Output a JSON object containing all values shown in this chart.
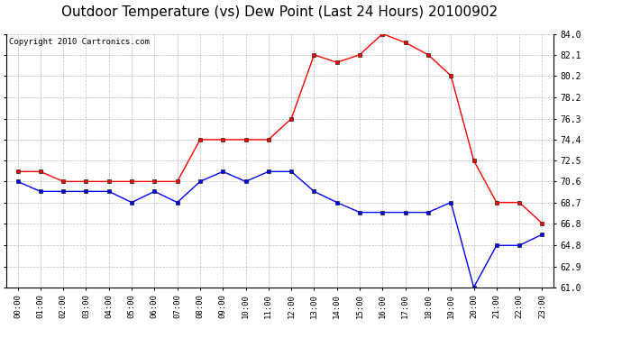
{
  "title": "Outdoor Temperature (vs) Dew Point (Last 24 Hours) 20100902",
  "copyright": "Copyright 2010 Cartronics.com",
  "x_labels": [
    "00:00",
    "01:00",
    "02:00",
    "03:00",
    "04:00",
    "05:00",
    "06:00",
    "07:00",
    "08:00",
    "09:00",
    "10:00",
    "11:00",
    "12:00",
    "13:00",
    "14:00",
    "15:00",
    "16:00",
    "17:00",
    "18:00",
    "19:00",
    "20:00",
    "21:00",
    "22:00",
    "23:00"
  ],
  "temp_red": [
    71.5,
    71.5,
    70.6,
    70.6,
    70.6,
    70.6,
    70.6,
    70.6,
    74.4,
    74.4,
    74.4,
    74.4,
    76.3,
    82.1,
    81.4,
    82.1,
    84.0,
    83.2,
    82.1,
    80.2,
    72.5,
    68.7,
    68.7,
    66.8
  ],
  "temp_blue": [
    70.6,
    69.7,
    69.7,
    69.7,
    69.7,
    68.7,
    69.7,
    68.7,
    70.6,
    71.5,
    70.6,
    71.5,
    71.5,
    69.7,
    68.7,
    67.8,
    67.8,
    67.8,
    67.8,
    68.7,
    61.0,
    64.8,
    64.8,
    65.8
  ],
  "ylim_min": 61.0,
  "ylim_max": 84.0,
  "yticks": [
    61.0,
    62.9,
    64.8,
    66.8,
    68.7,
    70.6,
    72.5,
    74.4,
    76.3,
    78.2,
    80.2,
    82.1,
    84.0
  ],
  "bg_color": "#ffffff",
  "grid_color": "#bbbbbb",
  "title_fontsize": 11,
  "copyright_fontsize": 6.5
}
